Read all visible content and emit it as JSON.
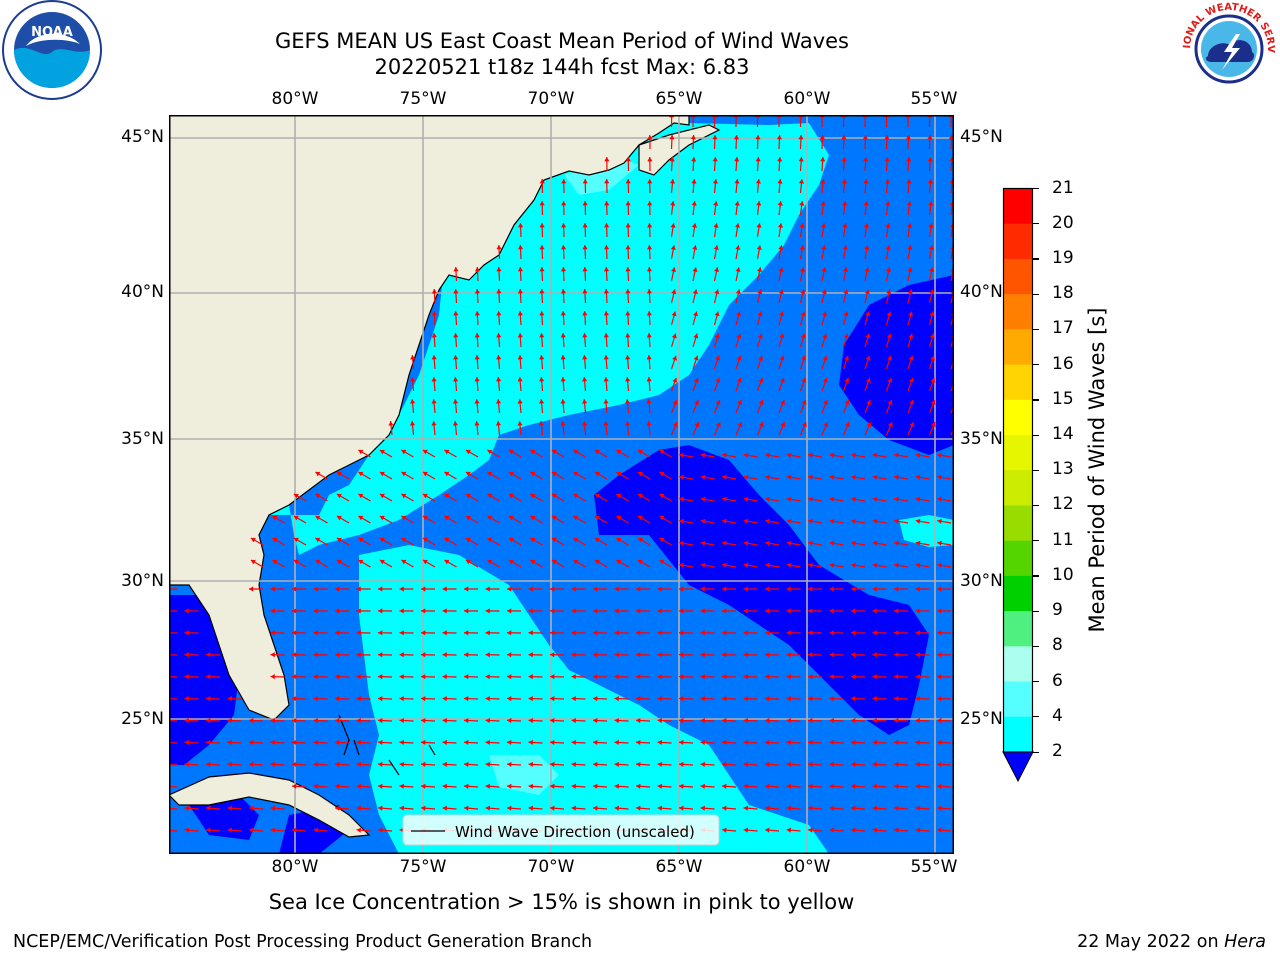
{
  "header": {
    "title_line1": "GEFS MEAN US East Coast Mean Period of Wind Waves",
    "title_line2": "20220521 t18z 144h fcst   Max: 6.83"
  },
  "logos": {
    "noaa_text": "NOAA",
    "nws_text": "NATIONAL WEATHER SERVICE"
  },
  "map": {
    "lon_labels": [
      "80°W",
      "75°W",
      "70°W",
      "65°W",
      "60°W",
      "55°W"
    ],
    "lat_labels": [
      "45°N",
      "40°N",
      "35°N",
      "30°N",
      "25°N"
    ],
    "colors": {
      "land": "#efeddc",
      "coast": "#000000",
      "grid": "#b0b0b0",
      "arrow": "#ff0000"
    },
    "legend_label": "Wind Wave Direction (unscaled)"
  },
  "colorbar": {
    "label": "Mean Period of Wind Waves [s]",
    "ticks": [
      "21",
      "20",
      "19",
      "18",
      "17",
      "16",
      "15",
      "14",
      "13",
      "12",
      "11",
      "10",
      "9",
      "8",
      "6",
      "4",
      "2"
    ],
    "colors": [
      "#ff0000",
      "#ff2a00",
      "#ff5500",
      "#ff8000",
      "#ffaa00",
      "#ffd400",
      "#ffff00",
      "#e6f500",
      "#ccec00",
      "#99dd00",
      "#55d500",
      "#00d000",
      "#50f080",
      "#aaffee",
      "#55ffff",
      "#00ffff",
      "#0077ff"
    ],
    "under_color": "#0000ff"
  },
  "caption": "Sea Ice Concentration > 15% is shown in pink to yellow",
  "footer": {
    "left": "NCEP/EMC/Verification Post Processing Product Generation Branch",
    "right_prefix": "22 May 2022 on",
    "right_italic": "Hera"
  }
}
